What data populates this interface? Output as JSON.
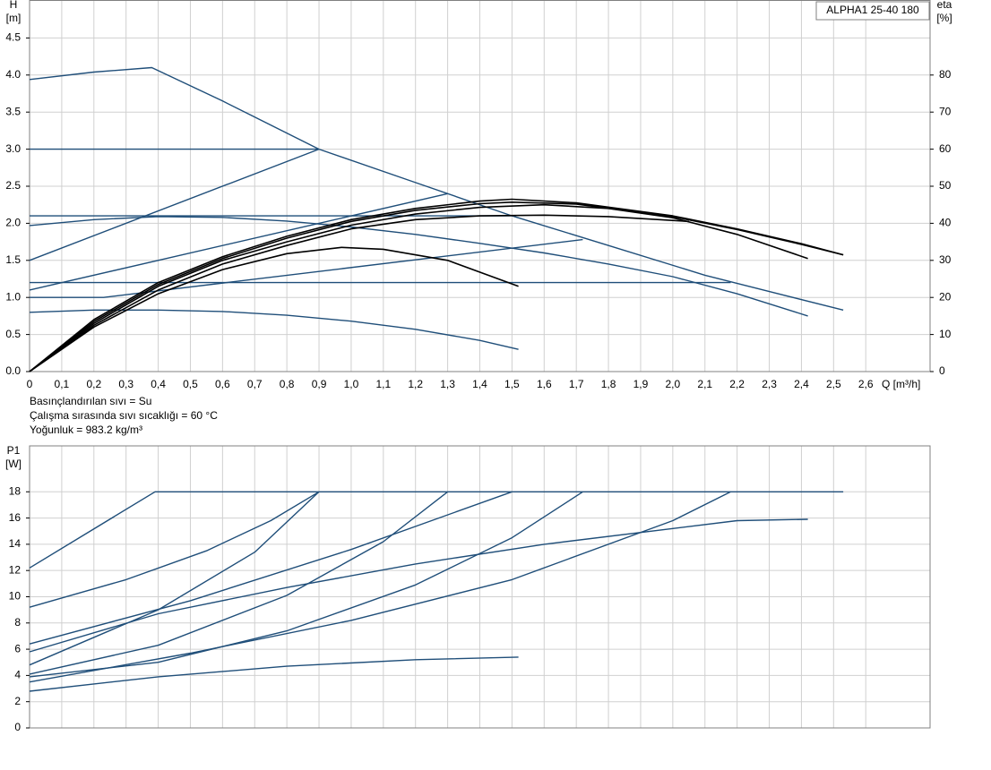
{
  "chart_data": [
    {
      "type": "line",
      "title": "ALPHA1 25-40 180",
      "ylabel": "H",
      "yunit": "[m]",
      "y2label": "eta",
      "y2unit": "[%]",
      "xlabel": "Q [m³/h]",
      "notes": [
        "Basınçlandırılan sıvı = Su",
        "Çalışma sırasında sıvı sıcaklığı = 60 °C",
        "Yoğunluk = 983.2 kg/m³"
      ],
      "xlim": [
        0,
        2.8
      ],
      "ylim": [
        0,
        5
      ],
      "y2lim": [
        0,
        100
      ],
      "grid": true,
      "xticks": [
        0,
        {
          "value": 0.1,
          "label": "0,1"
        },
        {
          "value": 0.2,
          "label": "0,2"
        },
        {
          "value": 0.3,
          "label": "0,3"
        },
        {
          "value": 0.4,
          "label": "0,4"
        },
        {
          "value": 0.5,
          "label": "0,5"
        },
        {
          "value": 0.6,
          "label": "0,6"
        },
        {
          "value": 0.7,
          "label": "0,7"
        },
        {
          "value": 0.8,
          "label": "0,8"
        },
        {
          "value": 0.9,
          "label": "0,9"
        },
        {
          "value": 1.0,
          "label": "1,0"
        },
        {
          "value": 1.1,
          "label": "1,1"
        },
        {
          "value": 1.2,
          "label": "1,2"
        },
        {
          "value": 1.3,
          "label": "1,3"
        },
        {
          "value": 1.4,
          "label": "1,4"
        },
        {
          "value": 1.5,
          "label": "1,5"
        },
        {
          "value": 1.6,
          "label": "1,6"
        },
        {
          "value": 1.7,
          "label": "1,7"
        },
        {
          "value": 1.8,
          "label": "1,8"
        },
        {
          "value": 1.9,
          "label": "1,9"
        },
        {
          "value": 2.0,
          "label": "2,0"
        },
        {
          "value": 2.1,
          "label": "2,1"
        },
        {
          "value": 2.2,
          "label": "2,2"
        },
        {
          "value": 2.3,
          "label": "2,3"
        },
        {
          "value": 2.4,
          "label": "2,4"
        },
        {
          "value": 2.5,
          "label": "2,5"
        },
        {
          "value": 2.6,
          "label": "2,6"
        }
      ],
      "yticks": [
        {
          "value": 0,
          "label": "0.0"
        },
        0.5,
        {
          "value": 1,
          "label": "1.0"
        },
        1.5,
        {
          "value": 2,
          "label": "2.0"
        },
        2.5,
        {
          "value": 3,
          "label": "3.0"
        },
        3.5,
        {
          "value": 4,
          "label": "4.0"
        },
        4.5
      ],
      "y2ticks": [
        0,
        10,
        20,
        30,
        40,
        50,
        60,
        70,
        80
      ],
      "series": [
        {
          "color": "#1f4e79",
          "x": [
            0,
            0.2,
            0.38,
            0.6,
            0.9,
            1.2,
            1.5,
            1.8,
            2.1,
            2.3,
            2.53
          ],
          "values": [
            3.94,
            4.04,
            4.1,
            3.65,
            3.0,
            2.55,
            2.1,
            1.7,
            1.3,
            1.08,
            0.83
          ]
        },
        {
          "color": "#1f4e79",
          "x": [
            0,
            0.2,
            0.4,
            0.6,
            0.8,
            1.0,
            1.2,
            1.4,
            1.6,
            1.8,
            2.0,
            2.2,
            2.42
          ],
          "values": [
            1.97,
            2.05,
            2.09,
            2.08,
            2.03,
            1.95,
            1.85,
            1.73,
            1.6,
            1.45,
            1.28,
            1.05,
            0.75
          ]
        },
        {
          "color": "#1f4e79",
          "x": [
            0,
            0.2,
            0.4,
            0.6,
            0.8,
            1.0,
            1.2,
            1.4,
            1.52
          ],
          "values": [
            0.8,
            0.83,
            0.83,
            0.81,
            0.76,
            0.68,
            0.57,
            0.42,
            0.3
          ]
        },
        {
          "color": "#1f4e79",
          "x": [
            0,
            0.9
          ],
          "values": [
            3,
            3
          ]
        },
        {
          "color": "#1f4e79",
          "x": [
            0,
            1.5
          ],
          "values": [
            2.1,
            2.1
          ]
        },
        {
          "color": "#1f4e79",
          "x": [
            0,
            2.18
          ],
          "values": [
            1.2,
            1.2
          ]
        },
        {
          "color": "#1f4e79",
          "x": [
            0,
            0.9
          ],
          "values": [
            1.5,
            3.0
          ]
        },
        {
          "color": "#1f4e79",
          "x": [
            0,
            1.3
          ],
          "values": [
            1.1,
            2.4
          ]
        },
        {
          "color": "#1f4e79",
          "x": [
            0,
            0.23,
            1.72
          ],
          "values": [
            1.0,
            1.0,
            1.78
          ]
        },
        {
          "color": "#000000",
          "axis": "y2",
          "x": [
            0,
            0.2,
            0.4,
            0.6,
            0.8,
            1.0,
            1.2,
            1.4,
            1.5,
            1.7,
            2.0,
            2.2,
            2.4,
            2.53
          ],
          "values": [
            0,
            14,
            24,
            31,
            36.5,
            41,
            44,
            46,
            46.5,
            45.5,
            42,
            38.5,
            34.5,
            31.5
          ]
        },
        {
          "color": "#000000",
          "axis": "y2",
          "x": [
            0,
            0.2,
            0.4,
            0.6,
            0.8,
            1.0,
            1.2,
            1.4,
            1.5,
            1.7,
            2.0,
            2.2,
            2.4,
            2.53
          ],
          "values": [
            0,
            13.5,
            23.5,
            30.5,
            36,
            40.5,
            43.5,
            45.3,
            45.7,
            45.2,
            41.8,
            38.3,
            34.3,
            31.5
          ]
        },
        {
          "color": "#000000",
          "axis": "y2",
          "x": [
            0,
            0.2,
            0.4,
            0.6,
            0.8,
            1.0,
            1.2,
            1.4,
            1.6,
            1.8,
            2.0,
            2.2,
            2.42
          ],
          "values": [
            0,
            13,
            23,
            30,
            35,
            39.5,
            42.5,
            44.3,
            45,
            44,
            41.5,
            37,
            30.5
          ]
        },
        {
          "color": "#000000",
          "axis": "y2",
          "x": [
            0,
            0.2,
            0.4,
            0.6,
            0.8,
            1.0,
            1.2,
            1.4,
            1.6,
            1.8,
            2.05
          ],
          "values": [
            0,
            12.5,
            22,
            29,
            34,
            38.5,
            41,
            42,
            42.2,
            41.8,
            40.5
          ]
        },
        {
          "color": "#000000",
          "axis": "y2",
          "x": [
            0,
            0.2,
            0.4,
            0.6,
            0.8,
            0.97,
            1.1,
            1.3,
            1.52
          ],
          "values": [
            0,
            12,
            21,
            27.5,
            31.8,
            33.5,
            33,
            30,
            23
          ]
        }
      ]
    },
    {
      "type": "line",
      "ylabel": "P1",
      "yunit": "[W]",
      "xlim": [
        0,
        2.8
      ],
      "ylim": [
        0,
        21.5
      ],
      "grid": true,
      "yticks": [
        0,
        2,
        4,
        6,
        8,
        10,
        12,
        14,
        16,
        18
      ],
      "series": [
        {
          "color": "#1f4e79",
          "x": [
            0,
            0.39,
            2.53
          ],
          "values": [
            12.2,
            18,
            18
          ]
        },
        {
          "color": "#1f4e79",
          "x": [
            0,
            0.4,
            0.8,
            1.2,
            1.6,
            2.0,
            2.2,
            2.42
          ],
          "values": [
            5.8,
            8.7,
            10.7,
            12.5,
            14,
            15.2,
            15.8,
            15.9
          ]
        },
        {
          "color": "#1f4e79",
          "x": [
            0,
            0.4,
            0.8,
            1.2,
            1.52
          ],
          "values": [
            2.8,
            3.9,
            4.7,
            5.2,
            5.4
          ]
        },
        {
          "color": "#1f4e79",
          "x": [
            0,
            0.3,
            0.55,
            0.75,
            0.9
          ],
          "values": [
            9.2,
            11.3,
            13.5,
            15.8,
            18
          ]
        },
        {
          "color": "#1f4e79",
          "x": [
            0,
            0.4,
            0.7,
            0.9
          ],
          "values": [
            4.8,
            9,
            13.4,
            18
          ]
        },
        {
          "color": "#1f4e79",
          "x": [
            0,
            0.4,
            0.8,
            1.1,
            1.3
          ],
          "values": [
            4.1,
            6.3,
            10.1,
            14.2,
            18
          ]
        },
        {
          "color": "#1f4e79",
          "x": [
            0,
            0.5,
            1.0,
            1.5
          ],
          "values": [
            6.4,
            9.7,
            13.6,
            18
          ]
        },
        {
          "color": "#1f4e79",
          "x": [
            0,
            0.4,
            0.8,
            1.2,
            1.5,
            1.72
          ],
          "values": [
            3.9,
            5.0,
            7.4,
            10.9,
            14.5,
            18
          ]
        },
        {
          "color": "#1f4e79",
          "x": [
            0,
            0.5,
            1.0,
            1.5,
            2.0,
            2.18
          ],
          "values": [
            3.5,
            5.7,
            8.2,
            11.3,
            15.8,
            18
          ]
        }
      ]
    }
  ]
}
